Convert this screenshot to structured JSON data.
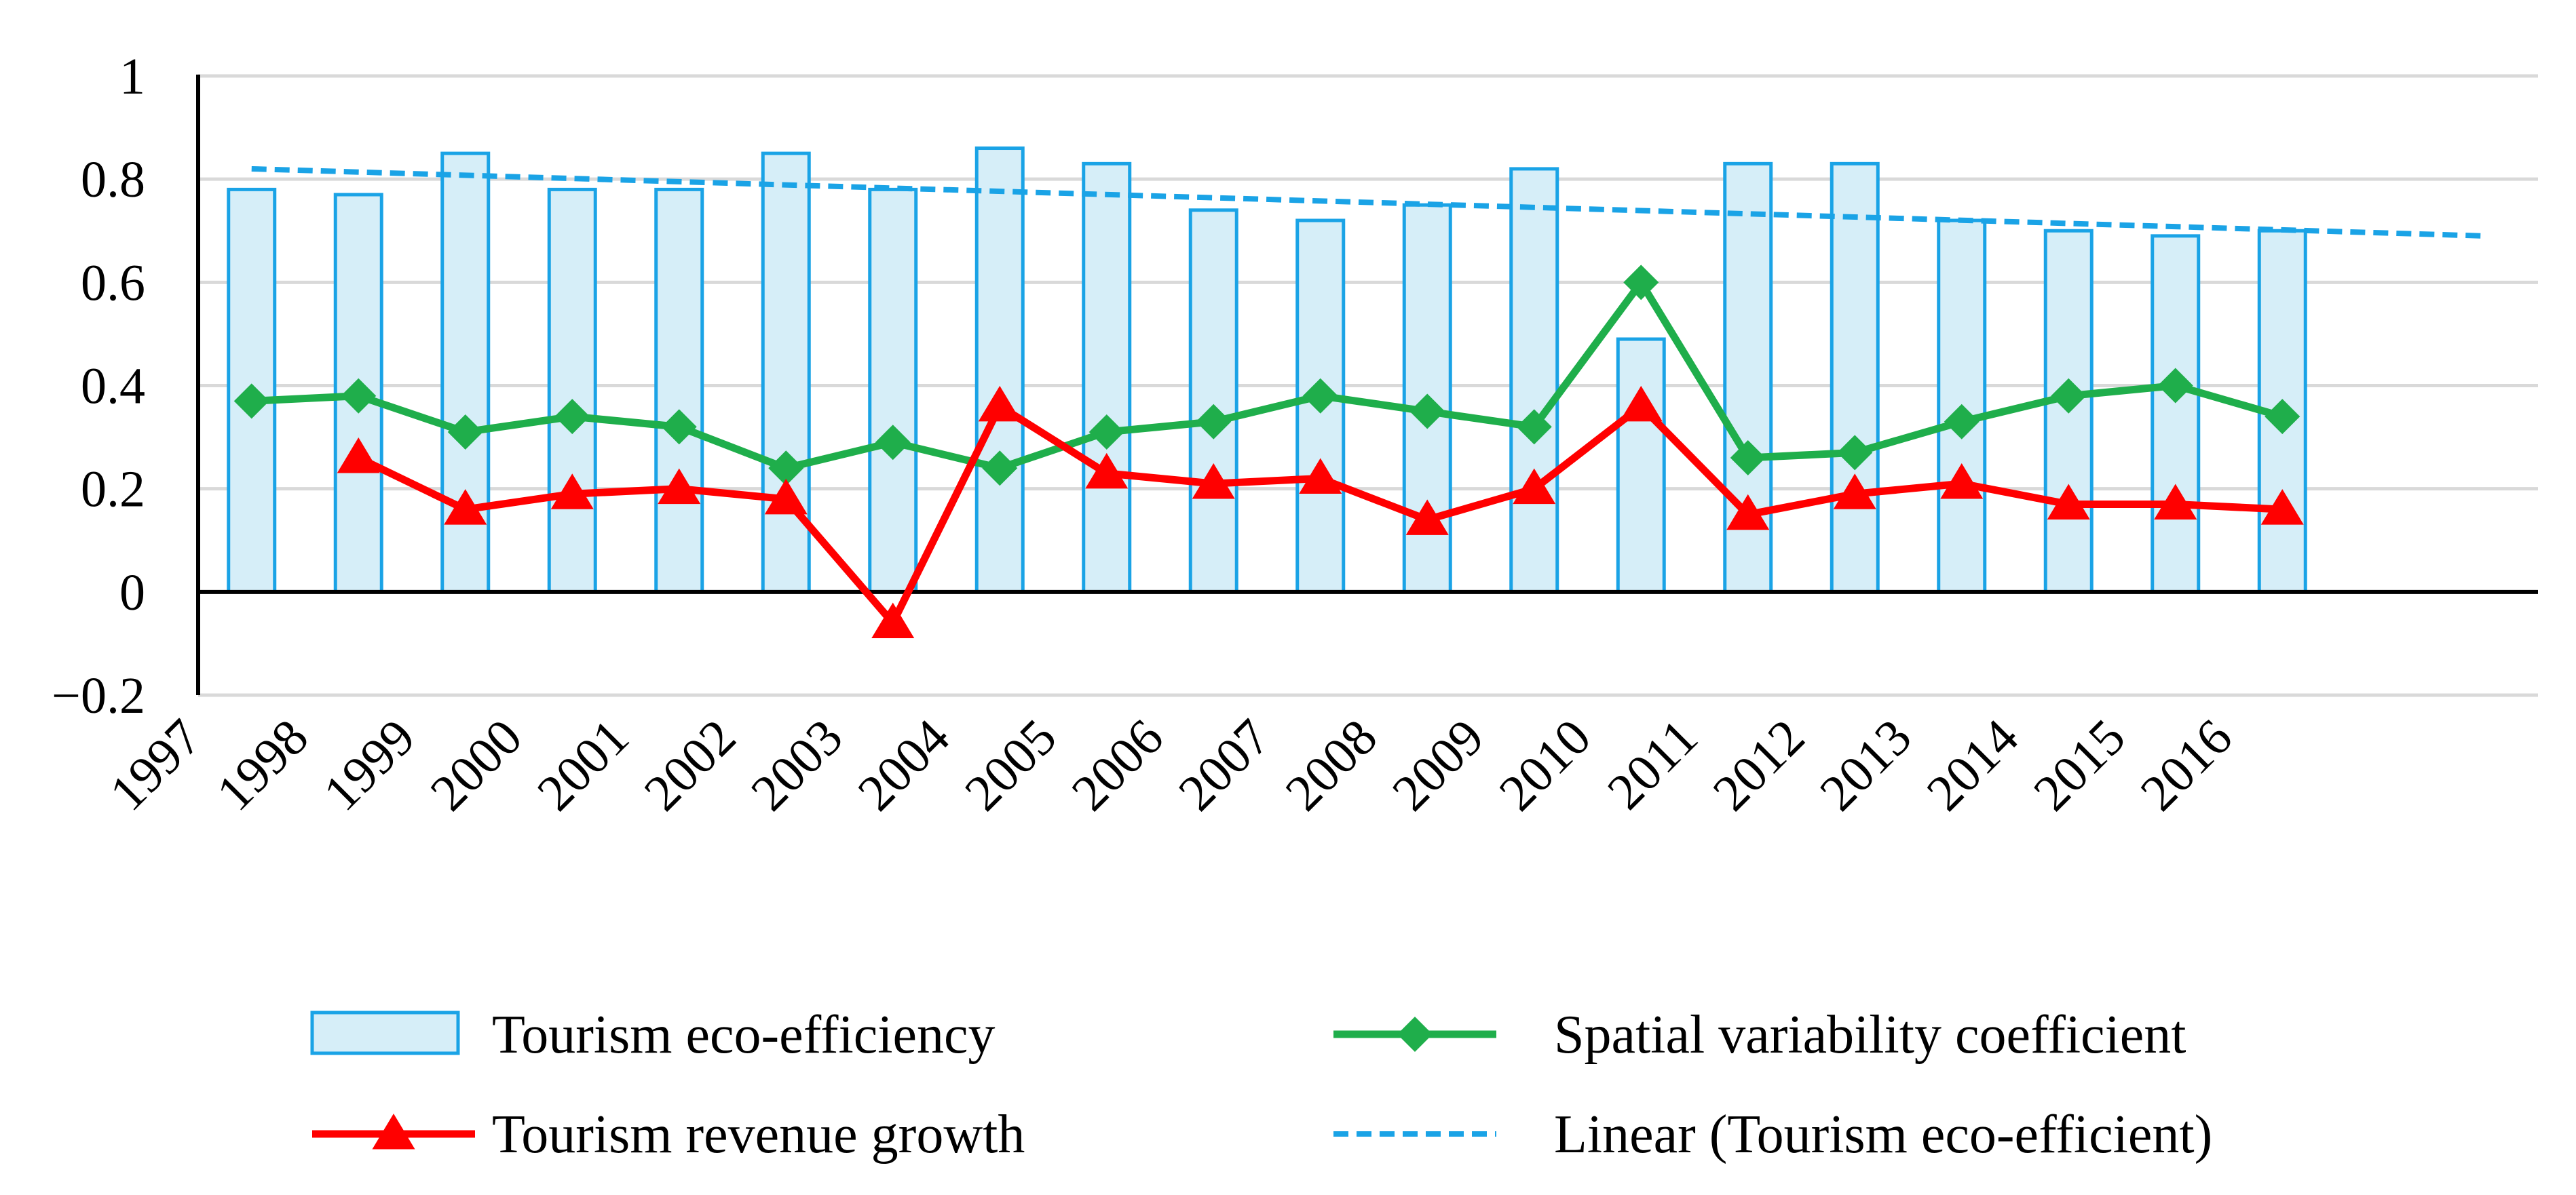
{
  "chart_data": {
    "type": "bar",
    "title": "",
    "xlabel": "",
    "ylabel": "",
    "ylim": [
      -0.2,
      1
    ],
    "y_ticks": [
      "1",
      "0.8",
      "0.6",
      "0.4",
      "0.2",
      "0",
      "−0.2"
    ],
    "y_tick_values": [
      1,
      0.8,
      0.6,
      0.4,
      0.2,
      0,
      -0.2
    ],
    "categories": [
      "1997",
      "1998",
      "1999",
      "2000",
      "2001",
      "2002",
      "2003",
      "2004",
      "2005",
      "2006",
      "2007",
      "2008",
      "2009",
      "2010",
      "2011",
      "2012",
      "2013",
      "2014",
      "2015",
      "2016"
    ],
    "grid": true,
    "legend_position": "bottom",
    "series": [
      {
        "name": "Tourism eco-efficiency",
        "kind": "bar",
        "color": "#d6eef8",
        "stroke": "#1aa3e6",
        "values": [
          0.78,
          0.77,
          0.85,
          0.78,
          0.78,
          0.85,
          0.78,
          0.86,
          0.83,
          0.74,
          0.72,
          0.75,
          0.82,
          0.49,
          0.83,
          0.83,
          0.72,
          0.7,
          0.69,
          0.7
        ]
      },
      {
        "name": "Spatial variability coefficient",
        "kind": "line",
        "marker": "diamond",
        "color": "#1fae4b",
        "values": [
          0.37,
          0.38,
          0.31,
          0.34,
          0.32,
          0.24,
          0.29,
          0.24,
          0.31,
          0.33,
          0.38,
          0.35,
          0.32,
          0.6,
          0.26,
          0.27,
          0.33,
          0.38,
          0.4,
          0.34
        ]
      },
      {
        "name": "Tourism revenue growth",
        "kind": "line",
        "marker": "triangle",
        "color": "#ff0000",
        "values": [
          null,
          0.26,
          0.16,
          0.19,
          0.2,
          0.18,
          -0.06,
          0.36,
          0.23,
          0.21,
          0.22,
          0.14,
          0.2,
          0.36,
          0.15,
          0.19,
          0.21,
          0.17,
          0.17,
          0.16
        ]
      },
      {
        "name": "Linear (Tourism eco-efficient)",
        "kind": "trendline",
        "dashed": true,
        "color": "#1aa3e6",
        "start_value": 0.82,
        "end_value": 0.69
      }
    ]
  }
}
